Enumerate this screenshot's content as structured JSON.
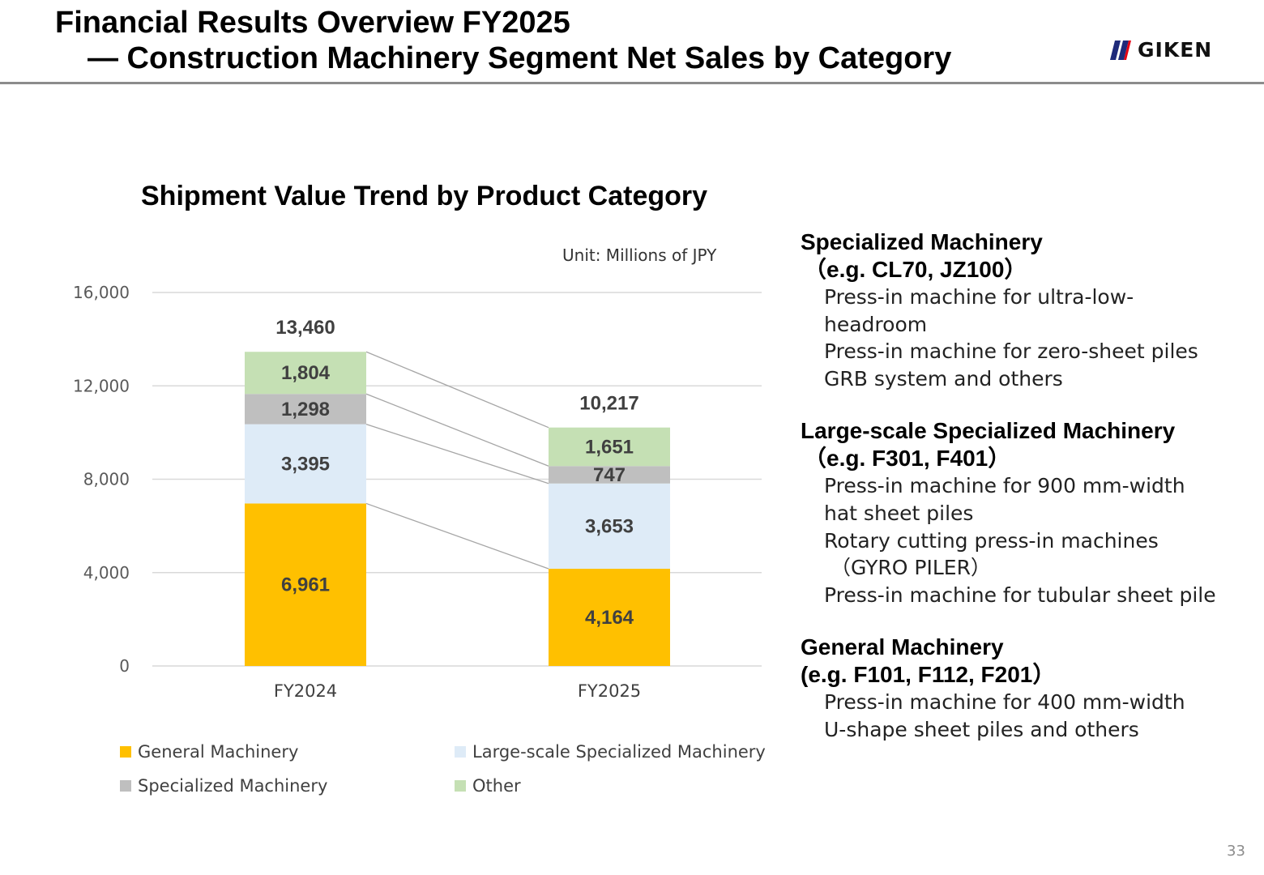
{
  "header": {
    "title_line1": "Financial Results Overview FY2025",
    "title_line2": "— Construction Machinery Segment Net Sales by Category"
  },
  "logo": {
    "text": "GIKEN",
    "mark_color": "#1f2a7a",
    "accent_color": "#e60012"
  },
  "chart": {
    "unit": "Unit: Millions of JPY"
  },
  "chart_data": {
    "type": "bar",
    "stacked": true,
    "title": "Shipment Value Trend by Product Category",
    "categories": [
      "FY2024",
      "FY2025"
    ],
    "series": [
      {
        "name": "General Machinery",
        "values": [
          6961,
          4164
        ],
        "labels": [
          "6,961",
          "4,164"
        ],
        "color": "#ffc000"
      },
      {
        "name": "Large-scale Specialized Machinery",
        "values": [
          3395,
          3653
        ],
        "labels": [
          "3,395",
          "3,653"
        ],
        "color": "#deebf7"
      },
      {
        "name": "Specialized Machinery",
        "values": [
          1298,
          747
        ],
        "labels": [
          "1,298",
          "747"
        ],
        "color": "#bfbfbf"
      },
      {
        "name": "Other",
        "values": [
          1804,
          1651
        ],
        "labels": [
          "1,804",
          "1,651"
        ],
        "color": "#c5e0b4"
      }
    ],
    "totals": [
      13460,
      10217
    ],
    "total_labels": [
      "13,460",
      "10,217"
    ],
    "ylim": [
      0,
      16000
    ],
    "yticks": [
      0,
      4000,
      8000,
      12000,
      16000
    ],
    "ytick_labels": [
      "0",
      "4,000",
      "8,000",
      "12,000",
      "16,000"
    ],
    "xlabel": "",
    "ylabel": "",
    "grid": true,
    "legend_position": "bottom"
  },
  "descriptions": [
    {
      "title": "Specialized Machinery",
      "example": "（e.g. CL70, JZ100）",
      "lines": [
        "Press-in machine for ultra-low-",
        "headroom",
        "Press-in machine for zero-sheet piles",
        "GRB system and others"
      ]
    },
    {
      "title": "Large-scale Specialized Machinery",
      "example": "（e.g. F301, F401）",
      "lines": [
        "Press-in machine for 900 mm-width",
        "hat sheet piles",
        "Rotary cutting press-in machines",
        "（GYRO PILER）",
        "Press-in machine for tubular sheet pile"
      ]
    },
    {
      "title": "General Machinery",
      "example": "(e.g. F101, F112, F201）",
      "lines": [
        "Press-in machine for 400 mm-width",
        "U-shape sheet piles and others"
      ]
    }
  ],
  "page_number": "33"
}
